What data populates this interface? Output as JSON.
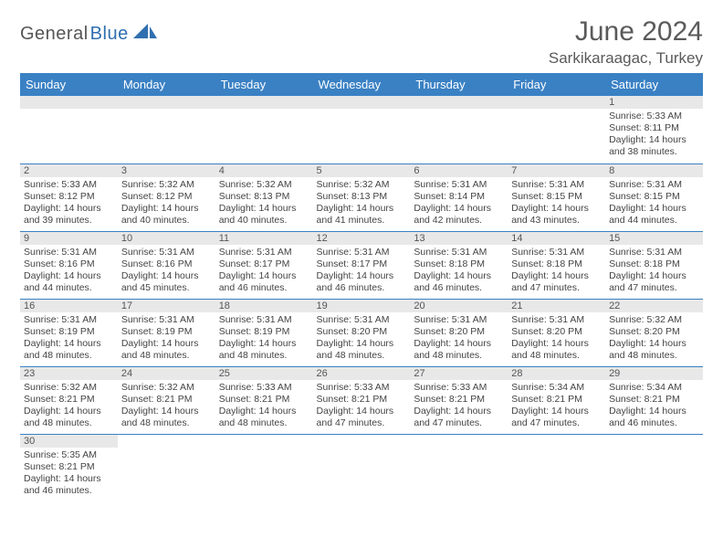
{
  "logo": {
    "text_main": "General",
    "text_accent": "Blue",
    "accent_color": "#2f6fb0",
    "main_color": "#565656"
  },
  "title": "June 2024",
  "location": "Sarkikaraagac, Turkey",
  "header_bg": "#3a81c4",
  "daynum_bg": "#e8e8e8",
  "columns": [
    "Sunday",
    "Monday",
    "Tuesday",
    "Wednesday",
    "Thursday",
    "Friday",
    "Saturday"
  ],
  "weeks": [
    [
      null,
      null,
      null,
      null,
      null,
      null,
      {
        "n": "1",
        "sunrise": "5:33 AM",
        "sunset": "8:11 PM",
        "daylight": "14 hours and 38 minutes."
      }
    ],
    [
      {
        "n": "2",
        "sunrise": "5:33 AM",
        "sunset": "8:12 PM",
        "daylight": "14 hours and 39 minutes."
      },
      {
        "n": "3",
        "sunrise": "5:32 AM",
        "sunset": "8:12 PM",
        "daylight": "14 hours and 40 minutes."
      },
      {
        "n": "4",
        "sunrise": "5:32 AM",
        "sunset": "8:13 PM",
        "daylight": "14 hours and 40 minutes."
      },
      {
        "n": "5",
        "sunrise": "5:32 AM",
        "sunset": "8:13 PM",
        "daylight": "14 hours and 41 minutes."
      },
      {
        "n": "6",
        "sunrise": "5:31 AM",
        "sunset": "8:14 PM",
        "daylight": "14 hours and 42 minutes."
      },
      {
        "n": "7",
        "sunrise": "5:31 AM",
        "sunset": "8:15 PM",
        "daylight": "14 hours and 43 minutes."
      },
      {
        "n": "8",
        "sunrise": "5:31 AM",
        "sunset": "8:15 PM",
        "daylight": "14 hours and 44 minutes."
      }
    ],
    [
      {
        "n": "9",
        "sunrise": "5:31 AM",
        "sunset": "8:16 PM",
        "daylight": "14 hours and 44 minutes."
      },
      {
        "n": "10",
        "sunrise": "5:31 AM",
        "sunset": "8:16 PM",
        "daylight": "14 hours and 45 minutes."
      },
      {
        "n": "11",
        "sunrise": "5:31 AM",
        "sunset": "8:17 PM",
        "daylight": "14 hours and 46 minutes."
      },
      {
        "n": "12",
        "sunrise": "5:31 AM",
        "sunset": "8:17 PM",
        "daylight": "14 hours and 46 minutes."
      },
      {
        "n": "13",
        "sunrise": "5:31 AM",
        "sunset": "8:18 PM",
        "daylight": "14 hours and 46 minutes."
      },
      {
        "n": "14",
        "sunrise": "5:31 AM",
        "sunset": "8:18 PM",
        "daylight": "14 hours and 47 minutes."
      },
      {
        "n": "15",
        "sunrise": "5:31 AM",
        "sunset": "8:18 PM",
        "daylight": "14 hours and 47 minutes."
      }
    ],
    [
      {
        "n": "16",
        "sunrise": "5:31 AM",
        "sunset": "8:19 PM",
        "daylight": "14 hours and 48 minutes."
      },
      {
        "n": "17",
        "sunrise": "5:31 AM",
        "sunset": "8:19 PM",
        "daylight": "14 hours and 48 minutes."
      },
      {
        "n": "18",
        "sunrise": "5:31 AM",
        "sunset": "8:19 PM",
        "daylight": "14 hours and 48 minutes."
      },
      {
        "n": "19",
        "sunrise": "5:31 AM",
        "sunset": "8:20 PM",
        "daylight": "14 hours and 48 minutes."
      },
      {
        "n": "20",
        "sunrise": "5:31 AM",
        "sunset": "8:20 PM",
        "daylight": "14 hours and 48 minutes."
      },
      {
        "n": "21",
        "sunrise": "5:31 AM",
        "sunset": "8:20 PM",
        "daylight": "14 hours and 48 minutes."
      },
      {
        "n": "22",
        "sunrise": "5:32 AM",
        "sunset": "8:20 PM",
        "daylight": "14 hours and 48 minutes."
      }
    ],
    [
      {
        "n": "23",
        "sunrise": "5:32 AM",
        "sunset": "8:21 PM",
        "daylight": "14 hours and 48 minutes."
      },
      {
        "n": "24",
        "sunrise": "5:32 AM",
        "sunset": "8:21 PM",
        "daylight": "14 hours and 48 minutes."
      },
      {
        "n": "25",
        "sunrise": "5:33 AM",
        "sunset": "8:21 PM",
        "daylight": "14 hours and 48 minutes."
      },
      {
        "n": "26",
        "sunrise": "5:33 AM",
        "sunset": "8:21 PM",
        "daylight": "14 hours and 47 minutes."
      },
      {
        "n": "27",
        "sunrise": "5:33 AM",
        "sunset": "8:21 PM",
        "daylight": "14 hours and 47 minutes."
      },
      {
        "n": "28",
        "sunrise": "5:34 AM",
        "sunset": "8:21 PM",
        "daylight": "14 hours and 47 minutes."
      },
      {
        "n": "29",
        "sunrise": "5:34 AM",
        "sunset": "8:21 PM",
        "daylight": "14 hours and 46 minutes."
      }
    ],
    [
      {
        "n": "30",
        "sunrise": "5:35 AM",
        "sunset": "8:21 PM",
        "daylight": "14 hours and 46 minutes."
      },
      null,
      null,
      null,
      null,
      null,
      null
    ]
  ],
  "labels": {
    "sunrise": "Sunrise: ",
    "sunset": "Sunset: ",
    "daylight": "Daylight: "
  }
}
